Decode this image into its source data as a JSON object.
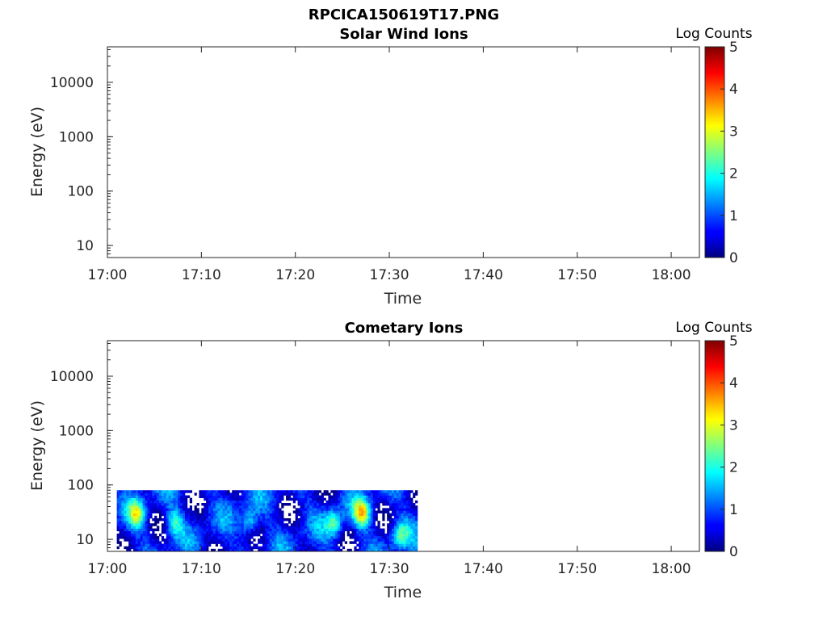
{
  "figure_title": "RPCICA150619T17.PNG",
  "chart_data": [
    {
      "type": "heatmap",
      "title": "Solar Wind Ions",
      "xlabel": "Time",
      "ylabel": "Energy (eV)",
      "y_scale": "log",
      "ylim": [
        6,
        45000
      ],
      "xlim": [
        "17:00",
        "18:03"
      ],
      "x_ticks": [
        "17:00",
        "17:10",
        "17:20",
        "17:30",
        "17:40",
        "17:50",
        "18:00"
      ],
      "y_ticks": [
        "10",
        "100",
        "1000",
        "10000"
      ],
      "colorbar": {
        "label": "Log Counts",
        "ticks": [
          "0",
          "1",
          "2",
          "3",
          "4",
          "5"
        ],
        "range": [
          0,
          5
        ],
        "colormap": "jet"
      },
      "data": []
    },
    {
      "type": "heatmap",
      "title": "Cometary Ions",
      "xlabel": "Time",
      "ylabel": "Energy (eV)",
      "y_scale": "log",
      "ylim": [
        6,
        45000
      ],
      "xlim": [
        "17:00",
        "18:03"
      ],
      "x_ticks": [
        "17:00",
        "17:10",
        "17:20",
        "17:30",
        "17:40",
        "17:50",
        "18:00"
      ],
      "y_ticks": [
        "10",
        "100",
        "1000",
        "10000"
      ],
      "colorbar": {
        "label": "Log Counts",
        "ticks": [
          "0",
          "1",
          "2",
          "3",
          "4",
          "5"
        ],
        "range": [
          0,
          5
        ],
        "colormap": "jet"
      },
      "data_time_range": [
        "17:01",
        "17:33"
      ],
      "data_energy_range_eV": [
        6,
        80
      ],
      "bright_features": [
        {
          "time": "17:03",
          "energy_eV": 30,
          "log_counts": 2.5
        },
        {
          "time": "17:07",
          "energy_eV": 20,
          "log_counts": 2.0
        },
        {
          "time": "17:15",
          "energy_eV": 20,
          "log_counts": 2.0
        },
        {
          "time": "17:24",
          "energy_eV": 20,
          "log_counts": 2.2
        },
        {
          "time": "17:27",
          "energy_eV": 30,
          "log_counts": 3.0
        },
        {
          "time": "17:31",
          "energy_eV": 12,
          "log_counts": 2.0
        }
      ]
    }
  ]
}
